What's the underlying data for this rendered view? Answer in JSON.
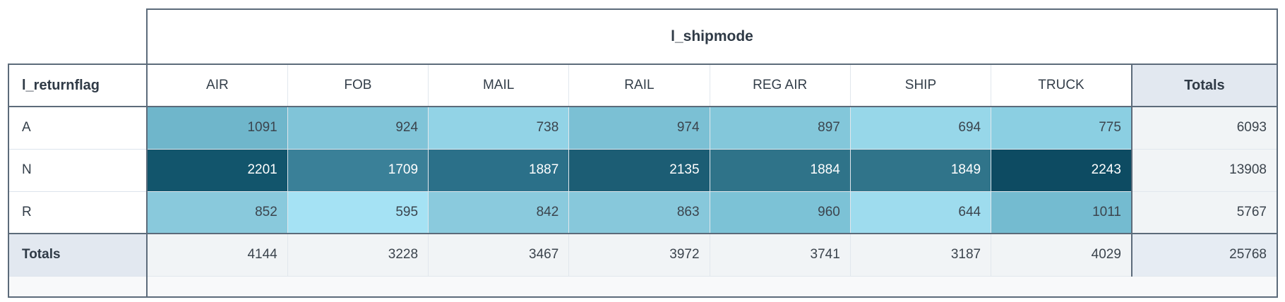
{
  "pivot": {
    "column_axis_label": "l_shipmode",
    "row_axis_label": "l_returnflag",
    "totals_label": "Totals"
  },
  "chart_data": {
    "type": "table",
    "subtype": "pivot-heatmap",
    "column_field": "l_shipmode",
    "row_field": "l_returnflag",
    "columns": [
      "AIR",
      "FOB",
      "MAIL",
      "RAIL",
      "REG AIR",
      "SHIP",
      "TRUCK"
    ],
    "series": [
      {
        "name": "A",
        "values": [
          1091,
          924,
          738,
          974,
          897,
          694,
          775
        ],
        "row_total": 6093
      },
      {
        "name": "N",
        "values": [
          2201,
          1709,
          1887,
          2135,
          1884,
          1849,
          2243
        ],
        "row_total": 13908
      },
      {
        "name": "R",
        "values": [
          852,
          595,
          842,
          863,
          960,
          644,
          1011
        ],
        "row_total": 5767
      }
    ],
    "column_totals": [
      4144,
      3228,
      3467,
      3972,
      3741,
      3187,
      4029
    ],
    "grand_total": 25768,
    "value_range": [
      595,
      2243
    ],
    "legend": "none",
    "cell_colors": [
      [
        "#6fb6cb",
        "#80c4d8",
        "#92d3e6",
        "#7bc0d4",
        "#83c7da",
        "#97d7e9",
        "#8bcfe2"
      ],
      [
        "#12556c",
        "#3a8098",
        "#2b7089",
        "#1c5d74",
        "#2f7389",
        "#30748a",
        "#0d4b62"
      ],
      [
        "#89c9dc",
        "#a5e2f4",
        "#8acadd",
        "#87c8db",
        "#7cc2d6",
        "#9edcee",
        "#74bbd0"
      ]
    ],
    "cell_text_colors": [
      [
        "#3b444d",
        "#3b444d",
        "#3b444d",
        "#3b444d",
        "#3b444d",
        "#3b444d",
        "#3b444d"
      ],
      [
        "#ffffff",
        "#ffffff",
        "#ffffff",
        "#ffffff",
        "#ffffff",
        "#ffffff",
        "#ffffff"
      ],
      [
        "#3b444d",
        "#3b444d",
        "#3b444d",
        "#3b444d",
        "#3b444d",
        "#3b444d",
        "#3b444d"
      ]
    ]
  },
  "colors": {
    "border_dark": "#5c6b7a",
    "border_light": "#e1e7ed",
    "totals_header_bg": "#e2e8f0",
    "totals_cell_bg": "#f1f4f6",
    "grand_total_bg": "#e6ecf3",
    "bottom_strip_bg": "#f8f9fa",
    "header_text": "#2f3a46",
    "cell_text_dark": "#3b444d",
    "cell_text_light": "#ffffff"
  }
}
